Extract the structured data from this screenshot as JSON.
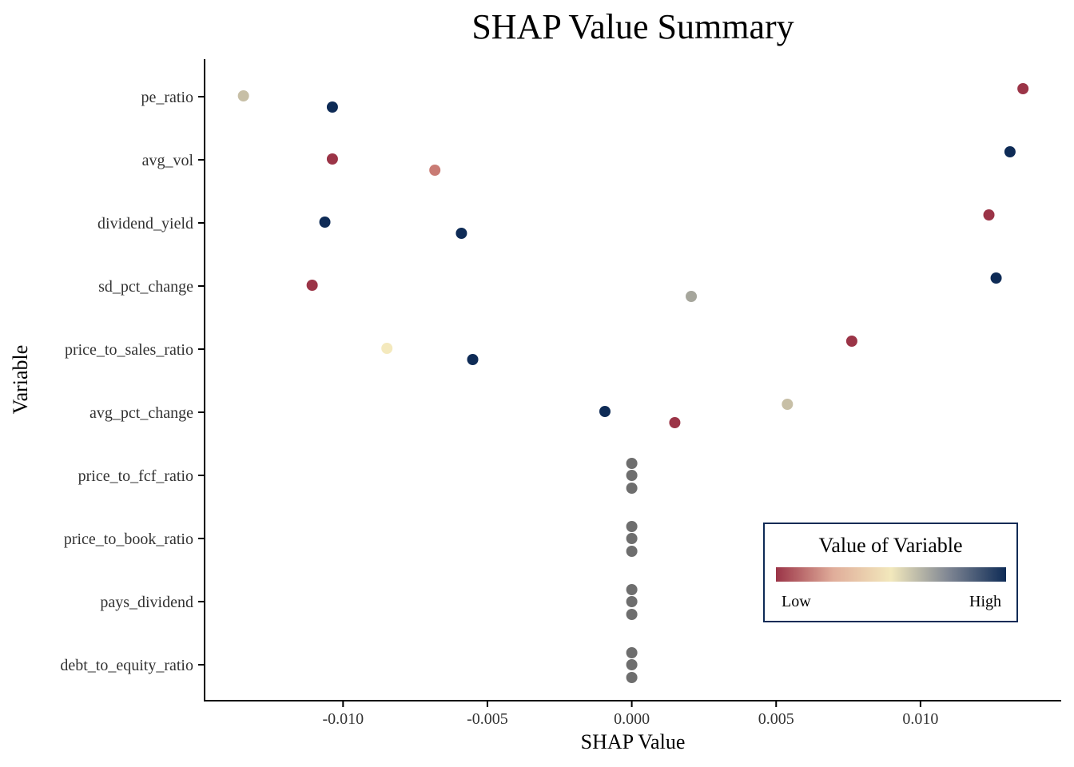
{
  "chart_data": {
    "type": "scatter",
    "title": "SHAP Value Summary",
    "xlabel": "SHAP Value",
    "ylabel": "Variable",
    "xlim": [
      -0.0148,
      0.0148
    ],
    "x_ticks": [
      -0.01,
      -0.005,
      0.0,
      0.005,
      0.01
    ],
    "x_tick_labels": [
      "-0.010",
      "-0.005",
      "0.000",
      "0.005",
      "0.010"
    ],
    "categories": [
      "pe_ratio",
      "avg_vol",
      "dividend_yield",
      "sd_pct_change",
      "price_to_sales_ratio",
      "avg_pct_change",
      "price_to_fcf_ratio",
      "price_to_book_ratio",
      "pays_dividend",
      "debt_to_equity_ratio"
    ],
    "grid": false,
    "legend": {
      "title": "Value of Variable",
      "low_label": "Low",
      "high_label": "High",
      "placement": "bottom-right",
      "gradient": [
        "#9b3447",
        "#e0ad9a",
        "#f2e8bc",
        "#7f8693",
        "#0e2b56"
      ]
    },
    "points": [
      {
        "variable": "pe_ratio",
        "shap": 0.01355,
        "slot": 0,
        "color": "#9b3447"
      },
      {
        "variable": "pe_ratio",
        "shap": -0.01345,
        "slot": 1,
        "color": "#c7bfa6"
      },
      {
        "variable": "pe_ratio",
        "shap": -0.01037,
        "slot": 2,
        "color": "#0e2b56"
      },
      {
        "variable": "avg_vol",
        "shap": 0.0131,
        "slot": 0,
        "color": "#0e2b56"
      },
      {
        "variable": "avg_vol",
        "shap": -0.01037,
        "slot": 1,
        "color": "#9b3447"
      },
      {
        "variable": "avg_vol",
        "shap": -0.00682,
        "slot": 2,
        "color": "#c97b74"
      },
      {
        "variable": "dividend_yield",
        "shap": 0.01237,
        "slot": 0,
        "color": "#9b3447"
      },
      {
        "variable": "dividend_yield",
        "shap": -0.01063,
        "slot": 1,
        "color": "#0e2b56"
      },
      {
        "variable": "dividend_yield",
        "shap": -0.0059,
        "slot": 2,
        "color": "#0e2b56"
      },
      {
        "variable": "sd_pct_change",
        "shap": 0.01262,
        "slot": 0,
        "color": "#0e2b56"
      },
      {
        "variable": "sd_pct_change",
        "shap": -0.01107,
        "slot": 1,
        "color": "#9b3447"
      },
      {
        "variable": "sd_pct_change",
        "shap": 0.00206,
        "slot": 2,
        "color": "#a6a69c"
      },
      {
        "variable": "price_to_sales_ratio",
        "shap": 0.00762,
        "slot": 0,
        "color": "#9b3447"
      },
      {
        "variable": "price_to_sales_ratio",
        "shap": -0.00848,
        "slot": 1,
        "color": "#f4e9bd"
      },
      {
        "variable": "price_to_sales_ratio",
        "shap": -0.00551,
        "slot": 2,
        "color": "#0e2b56"
      },
      {
        "variable": "avg_pct_change",
        "shap": 0.00539,
        "slot": 0,
        "color": "#c7bfa6"
      },
      {
        "variable": "avg_pct_change",
        "shap": -0.00093,
        "slot": 1,
        "color": "#0e2b56"
      },
      {
        "variable": "avg_pct_change",
        "shap": 0.00149,
        "slot": 2,
        "color": "#9b3447"
      },
      {
        "variable": "price_to_fcf_ratio",
        "shap": 0.0,
        "slot": 0,
        "color": "#6e6e6e"
      },
      {
        "variable": "price_to_fcf_ratio",
        "shap": 0.0,
        "slot": 1,
        "color": "#6e6e6e"
      },
      {
        "variable": "price_to_fcf_ratio",
        "shap": 0.0,
        "slot": 2,
        "color": "#6e6e6e"
      },
      {
        "variable": "price_to_book_ratio",
        "shap": 0.0,
        "slot": 0,
        "color": "#6e6e6e"
      },
      {
        "variable": "price_to_book_ratio",
        "shap": 0.0,
        "slot": 1,
        "color": "#6e6e6e"
      },
      {
        "variable": "price_to_book_ratio",
        "shap": 0.0,
        "slot": 2,
        "color": "#6e6e6e"
      },
      {
        "variable": "pays_dividend",
        "shap": 0.0,
        "slot": 0,
        "color": "#6e6e6e"
      },
      {
        "variable": "pays_dividend",
        "shap": 0.0,
        "slot": 1,
        "color": "#6e6e6e"
      },
      {
        "variable": "pays_dividend",
        "shap": 0.0,
        "slot": 2,
        "color": "#6e6e6e"
      },
      {
        "variable": "debt_to_equity_ratio",
        "shap": 0.0,
        "slot": 0,
        "color": "#6e6e6e"
      },
      {
        "variable": "debt_to_equity_ratio",
        "shap": 0.0,
        "slot": 1,
        "color": "#6e6e6e"
      },
      {
        "variable": "debt_to_equity_ratio",
        "shap": 0.0,
        "slot": 2,
        "color": "#6e6e6e"
      }
    ]
  }
}
